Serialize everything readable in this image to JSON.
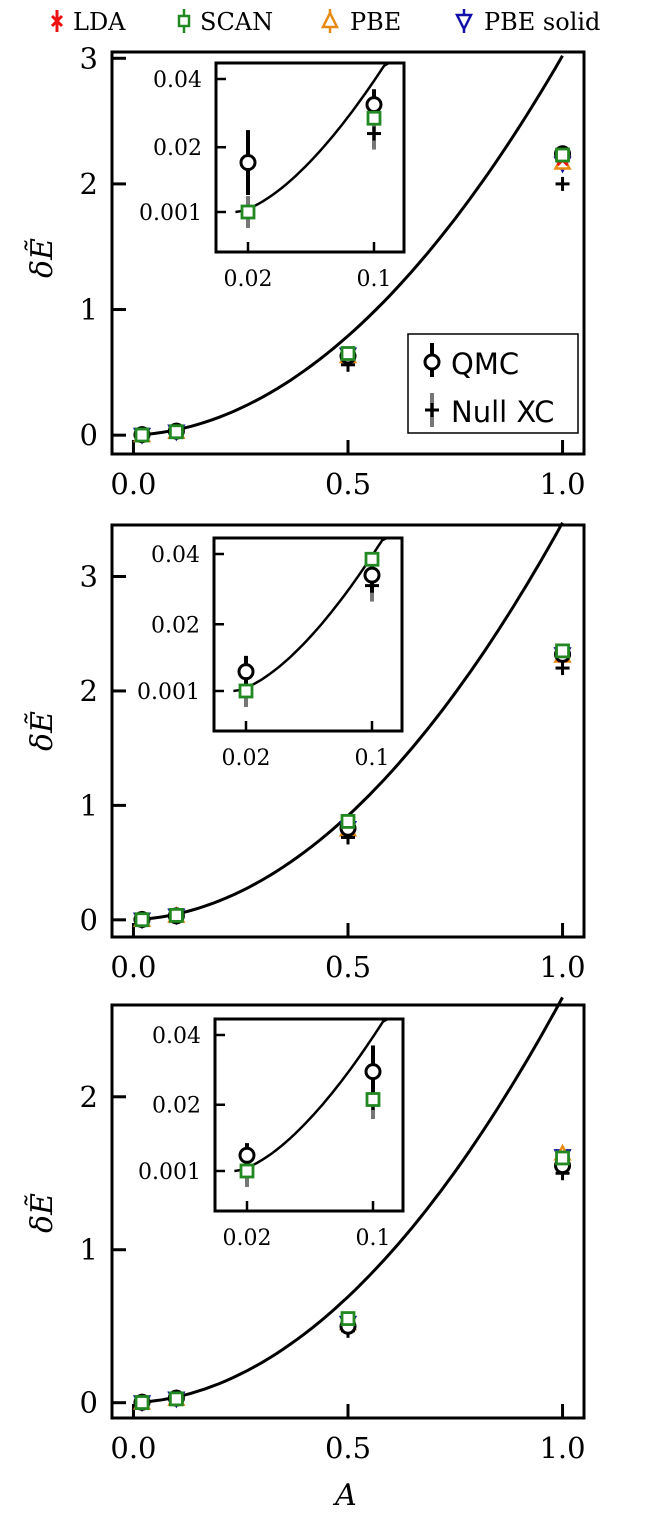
{
  "legend_top": {
    "entries": [
      {
        "label": "LDA",
        "color": "#ee1111",
        "marker": "x"
      },
      {
        "label": "SCAN",
        "color": "#228822",
        "marker": "square"
      },
      {
        "label": "PBE",
        "color": "#e88a10",
        "marker": "triangle-up"
      },
      {
        "label": "PBE solid",
        "color": "#1111aa",
        "marker": "triangle-down"
      }
    ]
  },
  "legend_inner": {
    "entries": [
      {
        "label": "QMC",
        "color": "#000000",
        "marker": "circle"
      },
      {
        "label": "Null XC",
        "color": "#000000",
        "marker": "plus"
      }
    ]
  },
  "xlabel": "A",
  "ylabel": "δẼ",
  "chart_data": [
    {
      "type": "scatter",
      "panel": "top",
      "xlim": [
        -0.05,
        1.05
      ],
      "ylim": [
        -0.15,
        3.05
      ],
      "xticks": [
        "0.0",
        "0.5",
        "1.0"
      ],
      "yticks": [
        "0",
        "1",
        "2",
        "3"
      ],
      "ylabel": "δẼ",
      "fit_curve": {
        "a": 2.88,
        "b": 0.14
      },
      "series": [
        {
          "name": "QMC",
          "x": [
            0.02,
            0.1,
            0.5,
            1.0
          ],
          "y": [
            0.004,
            0.032,
            0.63,
            2.24
          ],
          "yerr": [
            0.01,
            0.008,
            0.03,
            0.04
          ]
        },
        {
          "name": "Null XC",
          "x": [
            0.02,
            0.1,
            0.5,
            1.0
          ],
          "y": [
            0.001,
            0.024,
            0.56,
            2.0
          ]
        },
        {
          "name": "LDA",
          "x": [
            0.02,
            0.1,
            0.5,
            1.0
          ],
          "y": [
            0.001,
            0.028,
            0.64,
            2.19
          ]
        },
        {
          "name": "SCAN",
          "x": [
            0.02,
            0.1,
            0.5,
            1.0
          ],
          "y": [
            0.001,
            0.027,
            0.65,
            2.23
          ]
        },
        {
          "name": "PBE",
          "x": [
            0.02,
            0.1,
            0.5,
            1.0
          ],
          "y": [
            0.001,
            0.027,
            0.63,
            2.17
          ]
        },
        {
          "name": "PBE solid",
          "x": [
            0.02,
            0.1,
            0.5,
            1.0
          ],
          "y": [
            0.001,
            0.027,
            0.64,
            2.16
          ]
        }
      ],
      "inset": {
        "xticks": [
          {
            "x": 0.02,
            "label": "0.02"
          },
          {
            "x": 0.1,
            "label": "0.1"
          }
        ],
        "yticks": [
          {
            "y": 0.001,
            "label": "0.001"
          },
          {
            "y": 0.02,
            "label": "0.02"
          },
          {
            "y": 0.04,
            "label": "0.04"
          }
        ],
        "points": [
          {
            "series": "QMC",
            "x": 0.02,
            "y": 0.0155,
            "yerr": 0.0095
          },
          {
            "series": "QMC",
            "x": 0.1,
            "y": 0.0325,
            "yerr": 0.0045
          },
          {
            "series": "Null XC",
            "x": 0.02,
            "y": 0.001
          },
          {
            "series": "Null XC",
            "x": 0.1,
            "y": 0.024
          },
          {
            "series": "SCAN",
            "x": 0.02,
            "y": 0.001
          },
          {
            "series": "SCAN",
            "x": 0.1,
            "y": 0.0285
          }
        ]
      }
    },
    {
      "type": "scatter",
      "panel": "middle",
      "xlim": [
        -0.05,
        1.05
      ],
      "ylim": [
        -0.15,
        3.45
      ],
      "xticks": [
        "0.0",
        "0.5",
        "1.0"
      ],
      "yticks": [
        "0",
        "1",
        "2",
        "3"
      ],
      "ylabel": "δẼ",
      "fit_curve": {
        "a": 3.3,
        "b": 0.17
      },
      "series": [
        {
          "name": "QMC",
          "x": [
            0.02,
            0.1,
            0.5,
            1.0
          ],
          "y": [
            0.003,
            0.035,
            0.8,
            2.32
          ],
          "yerr": [
            0.005,
            0.007,
            0.03,
            0.04
          ]
        },
        {
          "name": "Null XC",
          "x": [
            0.02,
            0.1,
            0.5,
            1.0
          ],
          "y": [
            0.001,
            0.03,
            0.72,
            2.2
          ]
        },
        {
          "name": "LDA",
          "x": [
            0.02,
            0.1,
            0.5,
            1.0
          ],
          "y": [
            0.001,
            0.036,
            0.82,
            2.3
          ]
        },
        {
          "name": "SCAN",
          "x": [
            0.02,
            0.1,
            0.5,
            1.0
          ],
          "y": [
            0.001,
            0.039,
            0.86,
            2.35
          ]
        },
        {
          "name": "PBE",
          "x": [
            0.02,
            0.1,
            0.5,
            1.0
          ],
          "y": [
            0.001,
            0.037,
            0.79,
            2.31
          ]
        },
        {
          "name": "PBE solid",
          "x": [
            0.02,
            0.1,
            0.5,
            1.0
          ],
          "y": [
            0.001,
            0.036,
            0.8,
            2.32
          ]
        }
      ],
      "inset": {
        "xticks": [
          {
            "x": 0.02,
            "label": "0.02"
          },
          {
            "x": 0.1,
            "label": "0.1"
          }
        ],
        "yticks": [
          {
            "y": 0.001,
            "label": "0.001"
          },
          {
            "y": 0.02,
            "label": "0.02"
          },
          {
            "y": 0.04,
            "label": "0.04"
          }
        ],
        "points": [
          {
            "series": "QMC",
            "x": 0.02,
            "y": 0.0065,
            "yerr": 0.0045
          },
          {
            "series": "QMC",
            "x": 0.1,
            "y": 0.034,
            "yerr": 0.005
          },
          {
            "series": "Null XC",
            "x": 0.02,
            "y": 0.001
          },
          {
            "series": "Null XC",
            "x": 0.1,
            "y": 0.031
          },
          {
            "series": "SCAN",
            "x": 0.02,
            "y": 0.001
          },
          {
            "series": "SCAN",
            "x": 0.1,
            "y": 0.0385
          }
        ]
      }
    },
    {
      "type": "scatter",
      "panel": "bottom",
      "xlim": [
        -0.05,
        1.05
      ],
      "ylim": [
        -0.1,
        2.6
      ],
      "xticks": [
        "0.0",
        "0.5",
        "1.0"
      ],
      "yticks": [
        "0",
        "1",
        "2"
      ],
      "xlabel": "A",
      "ylabel": "δẼ",
      "fit_curve": {
        "a": 2.53,
        "b": 0.12
      },
      "series": [
        {
          "name": "QMC",
          "x": [
            0.02,
            0.1,
            0.5,
            1.0
          ],
          "y": [
            0.003,
            0.03,
            0.5,
            1.55
          ],
          "yerr": [
            0.004,
            0.008,
            0.03,
            0.04
          ]
        },
        {
          "name": "Null XC",
          "x": [
            0.02,
            0.1,
            0.5,
            1.0
          ],
          "y": [
            0.001,
            0.024,
            0.47,
            1.5
          ]
        },
        {
          "name": "LDA",
          "x": [
            0.02,
            0.1,
            0.5,
            1.0
          ],
          "y": [
            0.001,
            0.026,
            0.53,
            1.6
          ]
        },
        {
          "name": "SCAN",
          "x": [
            0.02,
            0.1,
            0.5,
            1.0
          ],
          "y": [
            0.001,
            0.025,
            0.55,
            1.6
          ]
        },
        {
          "name": "PBE",
          "x": [
            0.02,
            0.1,
            0.5,
            1.0
          ],
          "y": [
            0.001,
            0.027,
            0.52,
            1.63
          ]
        },
        {
          "name": "PBE solid",
          "x": [
            0.02,
            0.1,
            0.5,
            1.0
          ],
          "y": [
            0.001,
            0.026,
            0.52,
            1.61
          ]
        }
      ],
      "inset": {
        "xticks": [
          {
            "x": 0.02,
            "label": "0.02"
          },
          {
            "x": 0.1,
            "label": "0.1"
          }
        ],
        "yticks": [
          {
            "y": 0.001,
            "label": "0.001"
          },
          {
            "y": 0.02,
            "label": "0.02"
          },
          {
            "y": 0.04,
            "label": "0.04"
          }
        ],
        "points": [
          {
            "series": "QMC",
            "x": 0.02,
            "y": 0.0055,
            "yerr": 0.0035
          },
          {
            "series": "QMC",
            "x": 0.1,
            "y": 0.0295,
            "yerr": 0.0075
          },
          {
            "series": "Null XC",
            "x": 0.02,
            "y": 0.001
          },
          {
            "series": "Null XC",
            "x": 0.1,
            "y": 0.0205
          },
          {
            "series": "SCAN",
            "x": 0.02,
            "y": 0.001
          },
          {
            "series": "SCAN",
            "x": 0.1,
            "y": 0.0215
          }
        ]
      }
    }
  ]
}
